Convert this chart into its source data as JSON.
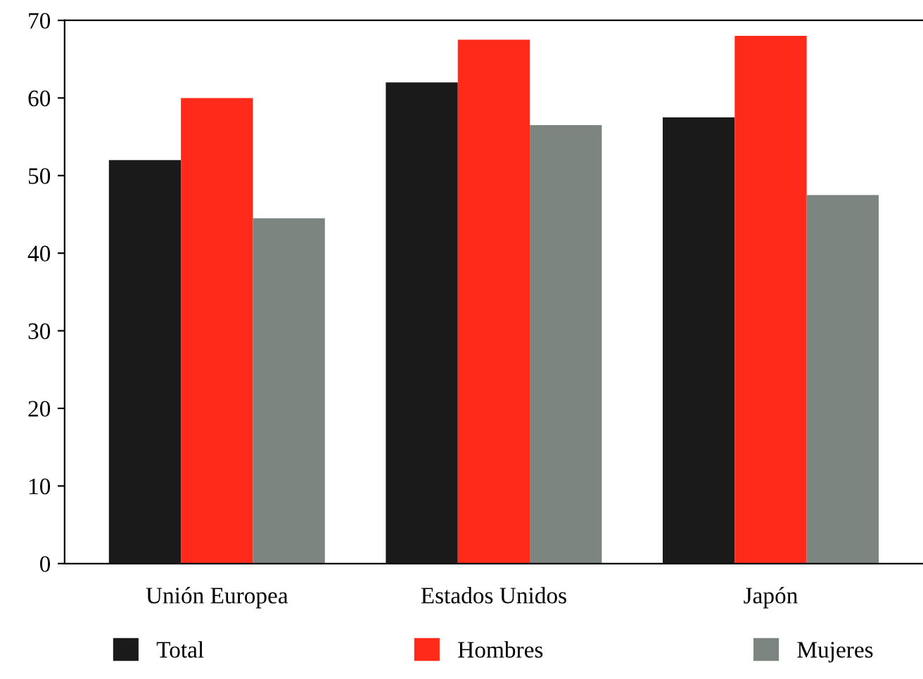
{
  "chart_data": {
    "type": "bar",
    "categories": [
      "Unión Europea",
      "Estados Unidos",
      "Japón"
    ],
    "series": [
      {
        "name": "Total",
        "color": "#1a1a1a",
        "values": [
          52,
          62,
          57.5
        ]
      },
      {
        "name": "Hombres",
        "color": "#ff2a1a",
        "values": [
          60,
          67.5,
          68
        ]
      },
      {
        "name": "Mujeres",
        "color": "#7d8580",
        "values": [
          44.5,
          56.5,
          47.5
        ]
      }
    ],
    "ylim": [
      0,
      70
    ],
    "yticks": [
      0,
      10,
      20,
      30,
      40,
      50,
      60,
      70
    ],
    "grid": false,
    "legend": "bottom"
  }
}
